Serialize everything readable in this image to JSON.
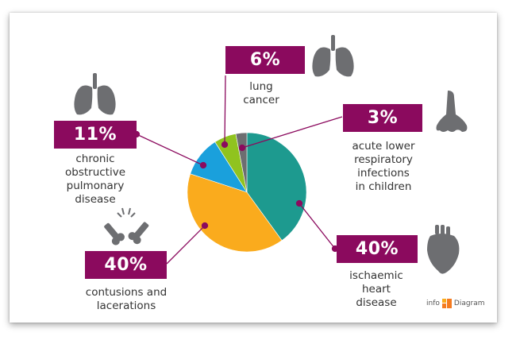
{
  "chart_data": {
    "type": "pie",
    "slices": [
      {
        "label": "ischaemic heart disease",
        "percent_label": "40%",
        "value": 40,
        "color": "#1d9a8f"
      },
      {
        "label": "contusions and lacerations",
        "percent_label": "40%",
        "value": 40,
        "color": "#faab1d"
      },
      {
        "label": "chronic obstructive pulmonary disease",
        "percent_label": "11%",
        "value": 11,
        "color": "#1aa0dc"
      },
      {
        "label": "lung cancer",
        "percent_label": "6%",
        "value": 6,
        "color": "#90c31f"
      },
      {
        "label": "acute lower respiratory infections in children",
        "percent_label": "3%",
        "value": 3,
        "color": "#6d6e71"
      }
    ]
  },
  "callouts": {
    "lung": {
      "percent": "6%",
      "caption": "lung\ncancer"
    },
    "nose": {
      "percent": "3%",
      "caption": "acute lower\nrespiratory\ninfections\nin children"
    },
    "copd": {
      "percent": "11%",
      "caption": "chronic\nobstructive\npulmonary\ndisease"
    },
    "heart": {
      "percent": "40%",
      "caption": "ischaemic\nheart\ndisease"
    },
    "contusion": {
      "percent": "40%",
      "caption": "contusions and\nlacerations"
    }
  },
  "logo": {
    "text_left": "info",
    "text_right": "Diagram"
  },
  "colors": {
    "callout": "#8b0a5e",
    "icon": "#6d6e71"
  }
}
